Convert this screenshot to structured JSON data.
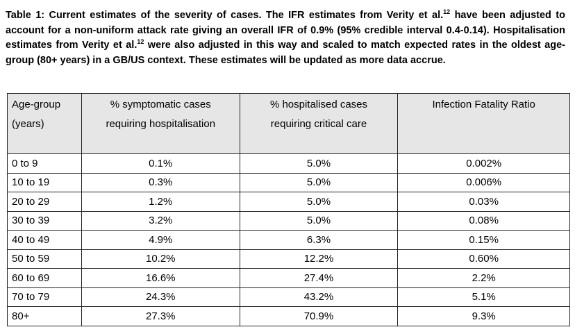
{
  "caption": {
    "part1": "Table 1: Current estimates of the severity of cases. The IFR estimates from Verity et al.",
    "ref1": "12",
    "part2": " have been adjusted to account for a non-uniform attack rate giving an overall IFR of 0.9% (95% credible interval 0.4-0.14). Hospitalisation estimates from Verity et al.",
    "ref2": "12",
    "part3": " were also adjusted in this way and scaled to match expected rates in the oldest age-group (80+ years) in a GB/US context. These estimates will be updated as more data accrue."
  },
  "table": {
    "headers": [
      {
        "line1": "Age-group",
        "line2": "(years)"
      },
      {
        "line1": "% symptomatic cases",
        "line2": "requiring hospitalisation"
      },
      {
        "line1": "% hospitalised cases",
        "line2": "requiring critical care"
      },
      {
        "line1": "Infection Fatality Ratio",
        "line2": ""
      }
    ],
    "rows": [
      [
        "0 to 9",
        "0.1%",
        "5.0%",
        "0.002%"
      ],
      [
        "10 to 19",
        "0.3%",
        "5.0%",
        "0.006%"
      ],
      [
        "20 to 29",
        "1.2%",
        "5.0%",
        "0.03%"
      ],
      [
        "30 to 39",
        "3.2%",
        "5.0%",
        "0.08%"
      ],
      [
        "40 to 49",
        "4.9%",
        "6.3%",
        "0.15%"
      ],
      [
        "50 to 59",
        "10.2%",
        "12.2%",
        "0.60%"
      ],
      [
        "60 to 69",
        "16.6%",
        "27.4%",
        "2.2%"
      ],
      [
        "70 to 79",
        "24.3%",
        "43.2%",
        "5.1%"
      ],
      [
        "80+",
        "27.3%",
        "70.9%",
        "9.3%"
      ]
    ]
  }
}
